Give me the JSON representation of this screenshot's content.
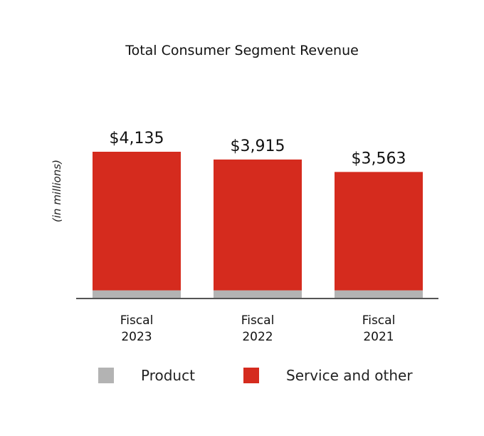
{
  "colors": {
    "product": "#b3b3b3",
    "service": "#d52b1e",
    "axis": "#555555",
    "text": "#111111"
  },
  "legend": {
    "product_label": "Product",
    "service_label": "Service and other"
  },
  "chart_data": {
    "type": "bar",
    "stacked": true,
    "title": "Total Consumer Segment Revenue",
    "ylabel": "(in millions)",
    "xlabel": "",
    "categories": [
      [
        "Fiscal",
        "2023"
      ],
      [
        "Fiscal",
        "2022"
      ],
      [
        "Fiscal",
        "2021"
      ]
    ],
    "totals_labels": [
      "$4,135",
      "$3,915",
      "$3,563"
    ],
    "totals": [
      4135,
      3915,
      3563
    ],
    "series": [
      {
        "name": "Product",
        "values": [
          210,
          210,
          210
        ]
      },
      {
        "name": "Service and other",
        "values": [
          3925,
          3705,
          3353
        ]
      }
    ],
    "ylim": [
      0,
      4135
    ],
    "grid": false,
    "legend_position": "bottom"
  }
}
